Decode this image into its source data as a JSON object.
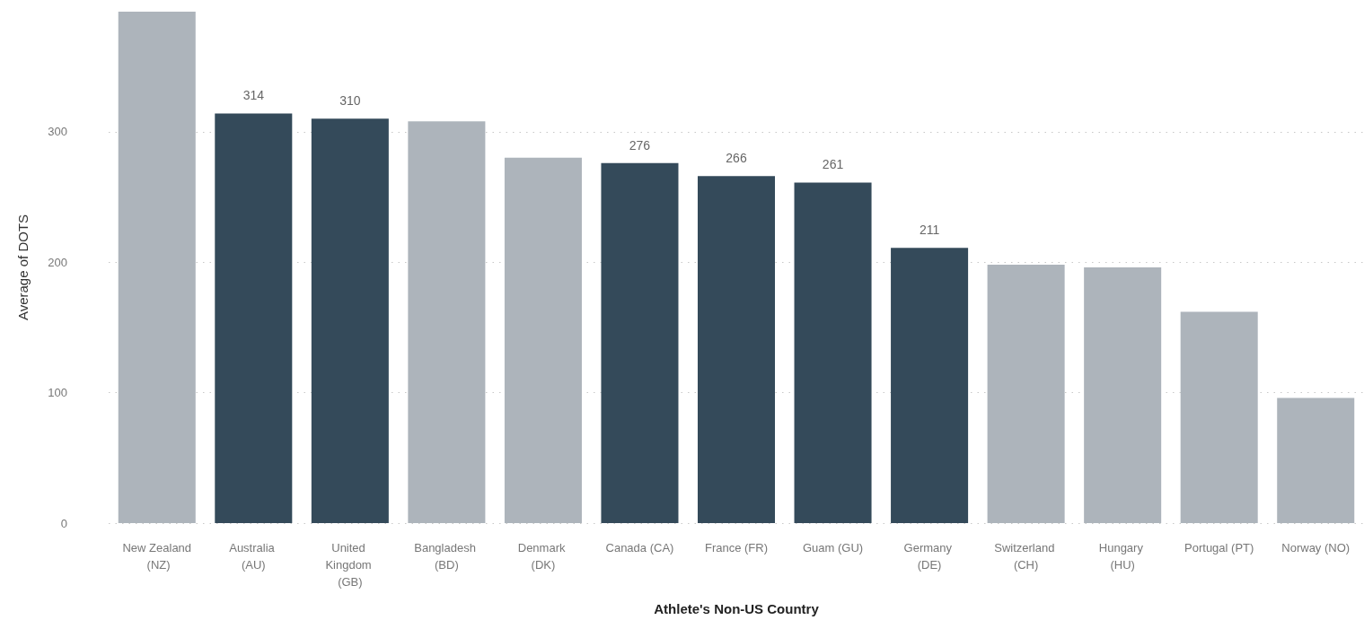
{
  "chart_data": {
    "type": "bar",
    "xlabel": "Athlete's Non-US Country",
    "ylabel": "Average of DOTS",
    "categories": [
      "New Zealand (NZ)",
      "Australia (AU)",
      "United Kingdom (GB)",
      "Bangladesh (BD)",
      "Denmark (DK)",
      "Canada (CA)",
      "France (FR)",
      "Guam (GU)",
      "Germany (DE)",
      "Switzerland (CH)",
      "Hungary (HU)",
      "Portugal (PT)",
      "Norway (NO)"
    ],
    "values": [
      392,
      314,
      310,
      308,
      280,
      276,
      266,
      261,
      211,
      198,
      196,
      162,
      96
    ],
    "value_labels": [
      null,
      "314",
      "310",
      null,
      null,
      "276",
      "266",
      "261",
      "211",
      null,
      null,
      null,
      null
    ],
    "colors": [
      "#adb4bb",
      "#344a5a",
      "#344a5a",
      "#adb4bb",
      "#adb4bb",
      "#344a5a",
      "#344a5a",
      "#344a5a",
      "#344a5a",
      "#adb4bb",
      "#adb4bb",
      "#adb4bb",
      "#adb4bb"
    ],
    "ylim": [
      0,
      392
    ],
    "yticks": [
      0,
      100,
      200,
      300
    ],
    "grid": "y"
  }
}
